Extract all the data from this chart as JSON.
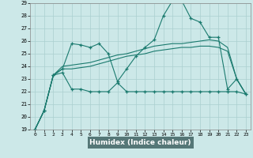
{
  "title": "",
  "xlabel": "Humidex (Indice chaleur)",
  "bg_color": "#cce8e8",
  "grid_color": "#aacfcf",
  "line_color": "#1a7a6e",
  "xlabel_bg": "#5a8a8a",
  "xlabel_fg": "#ffffff",
  "xlim": [
    -0.5,
    23.5
  ],
  "ylim": [
    19,
    29
  ],
  "xticks": [
    0,
    1,
    2,
    3,
    4,
    5,
    6,
    7,
    8,
    9,
    10,
    11,
    12,
    13,
    14,
    15,
    16,
    17,
    18,
    19,
    20,
    21,
    22,
    23
  ],
  "yticks": [
    19,
    20,
    21,
    22,
    23,
    24,
    25,
    26,
    27,
    28,
    29
  ],
  "lines": [
    {
      "x": [
        0,
        1,
        2,
        3,
        4,
        5,
        6,
        7,
        8,
        9,
        10,
        11,
        12,
        13,
        14,
        15,
        16,
        17,
        18,
        19,
        20,
        21,
        22,
        23
      ],
      "y": [
        19.0,
        20.5,
        23.3,
        23.5,
        22.2,
        22.2,
        22.0,
        22.0,
        22.0,
        22.7,
        22.0,
        22.0,
        22.0,
        22.0,
        22.0,
        22.0,
        22.0,
        22.0,
        22.0,
        22.0,
        22.0,
        22.0,
        22.0,
        21.8
      ],
      "marker": "+"
    },
    {
      "x": [
        0,
        1,
        2,
        3,
        4,
        5,
        6,
        7,
        8,
        9,
        10,
        11,
        12,
        13,
        14,
        15,
        16,
        17,
        18,
        19,
        20,
        21,
        22,
        23
      ],
      "y": [
        19.0,
        20.5,
        23.3,
        23.8,
        23.8,
        23.9,
        24.0,
        24.2,
        24.4,
        24.6,
        24.8,
        24.9,
        25.0,
        25.2,
        25.3,
        25.4,
        25.5,
        25.5,
        25.6,
        25.6,
        25.5,
        25.2,
        23.0,
        21.8
      ],
      "marker": null
    },
    {
      "x": [
        0,
        1,
        2,
        3,
        4,
        5,
        6,
        7,
        8,
        9,
        10,
        11,
        12,
        13,
        14,
        15,
        16,
        17,
        18,
        19,
        20,
        21,
        22,
        23
      ],
      "y": [
        19.0,
        20.5,
        23.3,
        24.0,
        24.1,
        24.2,
        24.3,
        24.5,
        24.7,
        24.9,
        25.0,
        25.2,
        25.4,
        25.6,
        25.7,
        25.8,
        25.8,
        25.9,
        26.0,
        26.1,
        26.0,
        25.5,
        23.0,
        21.8
      ],
      "marker": null
    },
    {
      "x": [
        0,
        1,
        2,
        3,
        4,
        5,
        6,
        7,
        8,
        9,
        10,
        11,
        12,
        13,
        14,
        15,
        16,
        17,
        18,
        19,
        20,
        21,
        22,
        23
      ],
      "y": [
        19.0,
        20.5,
        23.3,
        23.8,
        25.8,
        25.7,
        25.5,
        25.8,
        25.0,
        22.8,
        23.8,
        24.8,
        25.5,
        26.1,
        28.0,
        29.2,
        29.2,
        27.8,
        27.5,
        26.3,
        26.3,
        22.2,
        23.0,
        21.8
      ],
      "marker": "+"
    }
  ]
}
